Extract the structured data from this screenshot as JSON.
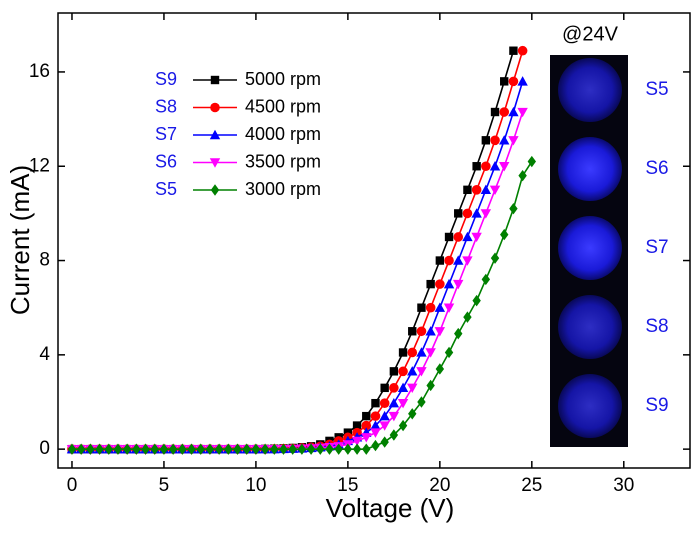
{
  "chart_data": {
    "type": "line",
    "xlabel": "Voltage (V)",
    "ylabel": "Current (mA)",
    "xlim": [
      -0.76,
      33.6
    ],
    "ylim": [
      -0.8,
      18.5
    ],
    "xticks": [
      0,
      5,
      10,
      15,
      20,
      25,
      30
    ],
    "yticks": [
      0,
      4,
      8,
      12,
      16
    ],
    "legend": "upper left",
    "x": [
      0,
      0.5,
      1,
      1.5,
      2,
      2.5,
      3,
      3.5,
      4,
      4.5,
      5,
      5.5,
      6,
      6.5,
      7,
      7.5,
      8,
      8.5,
      9,
      9.5,
      10,
      10.5,
      11,
      11.5,
      12,
      12.5,
      13,
      13.5,
      14,
      14.5,
      15,
      15.5,
      16,
      16.5,
      17,
      17.5,
      18,
      18.5,
      19,
      19.5,
      20,
      20.5,
      21,
      21.5,
      22,
      22.5,
      23,
      23.5,
      24,
      24.5,
      25
    ],
    "series": [
      {
        "label": "S9",
        "name": "5000 rpm",
        "color": "#000000",
        "marker": "square",
        "values": [
          0,
          0,
          0,
          0,
          0,
          0,
          0,
          0,
          0,
          0,
          0,
          0,
          0,
          0,
          0,
          0,
          0,
          0,
          0,
          0,
          0,
          0.01,
          0.02,
          0.03,
          0.05,
          0.08,
          0.12,
          0.2,
          0.35,
          0.5,
          0.7,
          1.0,
          1.4,
          1.95,
          2.6,
          3.3,
          4.1,
          5.0,
          6.0,
          7.0,
          8.0,
          9.0,
          10.0,
          11.0,
          12.0,
          13.1,
          14.3,
          15.6,
          16.9,
          null,
          null
        ]
      },
      {
        "label": "S8",
        "name": "4500 rpm",
        "color": "#ff0000",
        "marker": "circle",
        "values": [
          0,
          0,
          0,
          0,
          0,
          0,
          0,
          0,
          0,
          0,
          0,
          0,
          0,
          0,
          0,
          0,
          0,
          0,
          0,
          0,
          0,
          0,
          0.01,
          0.02,
          0.03,
          0.05,
          0.08,
          0.12,
          0.2,
          0.35,
          0.5,
          0.7,
          1.0,
          1.4,
          1.95,
          2.6,
          3.3,
          4.1,
          5.0,
          6.0,
          7.0,
          8.0,
          9.0,
          10.0,
          11.0,
          12.0,
          13.1,
          14.3,
          15.6,
          16.9,
          null
        ]
      },
      {
        "label": "S7",
        "name": "4000 rpm",
        "color": "#0000ff",
        "marker": "triangle-up",
        "values": [
          0,
          0,
          0,
          0,
          0,
          0,
          0,
          0,
          0,
          0,
          0,
          0,
          0,
          0,
          0,
          0,
          0,
          0,
          0,
          0,
          0,
          0,
          0,
          0.01,
          0.02,
          0.03,
          0.05,
          0.08,
          0.12,
          0.2,
          0.35,
          0.5,
          0.7,
          1.0,
          1.4,
          1.95,
          2.6,
          3.3,
          4.1,
          5.0,
          6.0,
          7.0,
          8.0,
          9.0,
          10.0,
          11.0,
          12.0,
          13.1,
          14.3,
          15.6,
          null
        ]
      },
      {
        "label": "S6",
        "name": "3500 rpm",
        "color": "#ff00ff",
        "marker": "triangle-down",
        "values": [
          0,
          0,
          0,
          0,
          0,
          0,
          0,
          0,
          0,
          0,
          0,
          0,
          0,
          0,
          0,
          0,
          0,
          0,
          0,
          0,
          0,
          0,
          0,
          0,
          0.01,
          0.02,
          0.03,
          0.05,
          0.08,
          0.12,
          0.2,
          0.35,
          0.5,
          0.7,
          1.0,
          1.4,
          1.95,
          2.6,
          3.3,
          4.1,
          5.0,
          6.0,
          7.0,
          8.0,
          9.0,
          10.0,
          11.0,
          12.0,
          13.1,
          14.3,
          null
        ]
      },
      {
        "label": "S5",
        "name": "3000 rpm",
        "color": "#008000",
        "marker": "diamond",
        "values": [
          0,
          0,
          0,
          0,
          0,
          0,
          0,
          0,
          0,
          0,
          0,
          0,
          0,
          0,
          0,
          0,
          0,
          0,
          0,
          0,
          0,
          0,
          0,
          0,
          0,
          0,
          0,
          0,
          0,
          0,
          0,
          0,
          0,
          0.15,
          0.3,
          0.6,
          1.0,
          1.5,
          2.0,
          2.7,
          3.4,
          4.1,
          4.9,
          5.6,
          6.3,
          7.2,
          8.1,
          9.1,
          10.2,
          11.6,
          12.2
        ]
      }
    ],
    "inset": {
      "title": "@24V",
      "labels": [
        "S5",
        "S6",
        "S7",
        "S8",
        "S9"
      ]
    }
  }
}
